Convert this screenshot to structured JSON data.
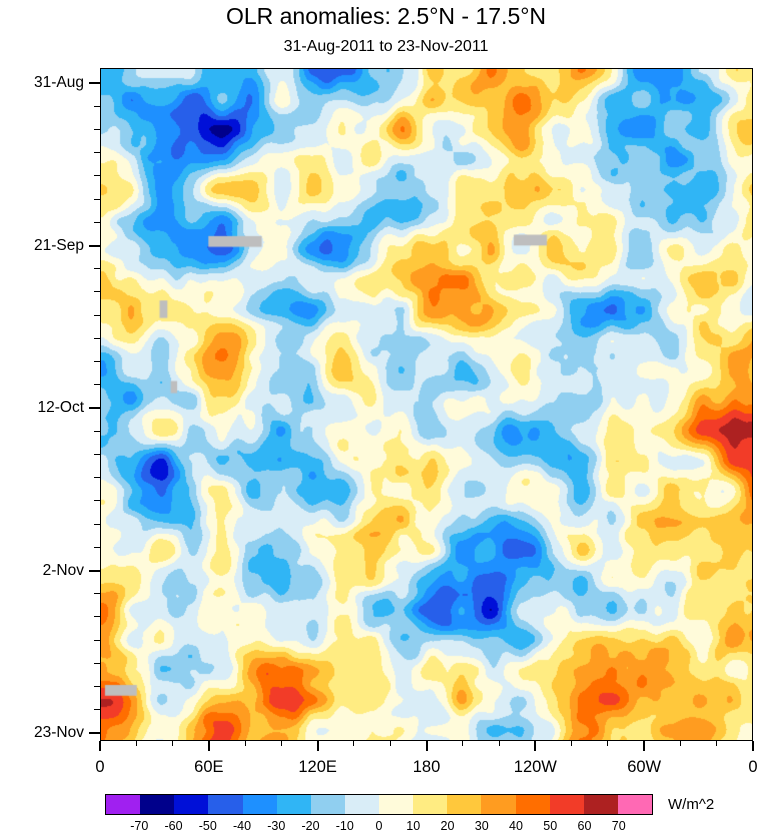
{
  "chart_data": {
    "type": "heatmap",
    "title": "OLR anomalies: 2.5°N - 17.5°N",
    "subtitle": "31-Aug-2011 to 23-Nov-2011",
    "x_axis": {
      "tick_labels": [
        "0",
        "60E",
        "120E",
        "180",
        "120W",
        "60W",
        "0"
      ],
      "tick_degrees": [
        0,
        60,
        120,
        180,
        240,
        300,
        360
      ],
      "minor_tick_step_degrees": 20,
      "range_degrees": [
        0,
        360
      ]
    },
    "y_axis": {
      "tick_labels": [
        "31-Aug",
        "21-Sep",
        "12-Oct",
        "2-Nov",
        "23-Nov"
      ],
      "tick_days": [
        0,
        21,
        42,
        63,
        84
      ],
      "minor_tick_step_days": 3,
      "range_days": [
        0,
        84
      ],
      "direction": "time increases downward"
    },
    "colorbar": {
      "units_label": "W/m^2",
      "levels": [
        -70,
        -60,
        -50,
        -40,
        -30,
        -20,
        -10,
        0,
        10,
        20,
        30,
        40,
        50,
        60,
        70
      ],
      "colors": [
        "#A020F0",
        "#00008B",
        "#0010D8",
        "#275FEA",
        "#1E90FF",
        "#30B5F5",
        "#90CFF0",
        "#D9EDF7",
        "#FFFBDA",
        "#FFEC82",
        "#FFC83C",
        "#FF9C20",
        "#FF6E00",
        "#F23C28",
        "#AD2121",
        "#FF69B4"
      ]
    },
    "missing_data": {
      "color": "#BEBEBE",
      "patches_frac": [
        {
          "x": 0.165,
          "y": 0.249,
          "w": 0.082,
          "h": 0.016
        },
        {
          "x": 0.634,
          "y": 0.247,
          "w": 0.051,
          "h": 0.016
        },
        {
          "x": 0.006,
          "y": 0.918,
          "w": 0.049,
          "h": 0.016
        },
        {
          "x": 0.09,
          "y": 0.345,
          "w": 0.012,
          "h": 0.026
        },
        {
          "x": 0.107,
          "y": 0.465,
          "w": 0.01,
          "h": 0.018
        }
      ]
    },
    "field_description": "Filled-contour Hovmoller (time vs longitude) field of OLR anomalies in W/m^2; small-scale positive (yellow/orange/red) and negative (blue/navy/purple) anomaly patches spanning roughly -80 to +80"
  }
}
